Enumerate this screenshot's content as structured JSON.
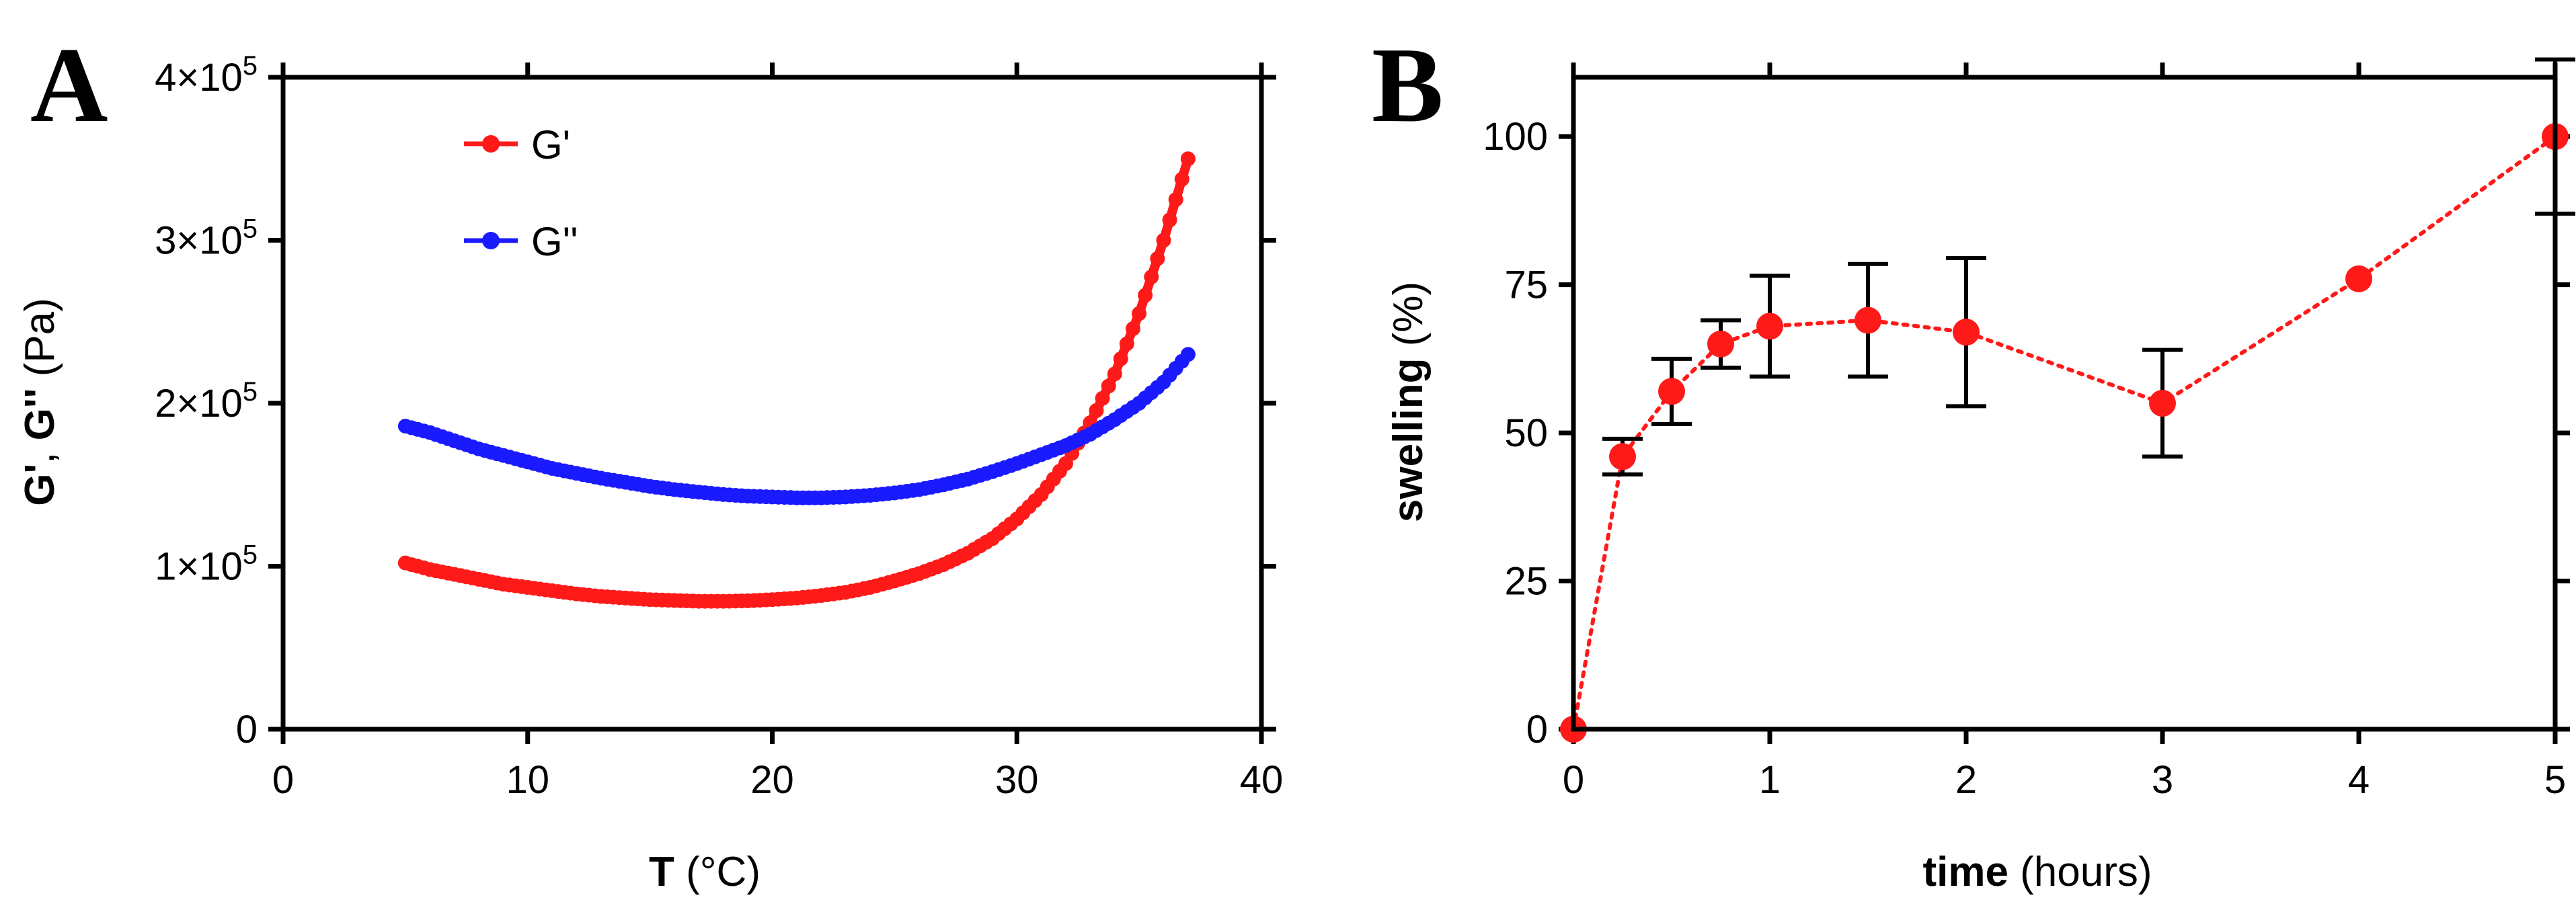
{
  "panels": {
    "A": {
      "label": "A",
      "ylabel_g1": "G'",
      "ylabel_comma": ", ",
      "ylabel_g2": "G''",
      "ylabel_unit": " (Pa)",
      "xlabel_bold": "T",
      "xlabel_unit": " (°C)",
      "y_exp": "5",
      "legend": [
        "G'",
        "G''"
      ]
    },
    "B": {
      "label": "B",
      "ylabel_bold": "swelling",
      "ylabel_unit": " (%)",
      "xlabel_bold": "time",
      "xlabel_unit": " (hours)"
    }
  },
  "chart_data": [
    {
      "type": "scatter",
      "title": "",
      "xlabel": "T (°C)",
      "ylabel": "G', G'' (Pa)",
      "xlim": [
        0,
        40
      ],
      "ylim": [
        0,
        400000
      ],
      "xticks": [
        0,
        10,
        20,
        30,
        40
      ],
      "xtick_labels": [
        "0",
        "10",
        "20",
        "30",
        "40"
      ],
      "yticks": [
        0,
        100000,
        200000,
        300000,
        400000
      ],
      "ytick_labels": [
        "0",
        "1×10",
        "2×10",
        "3×10",
        "4×10"
      ],
      "legend_position": "top-center",
      "series": [
        {
          "name": "G'",
          "color": "#ff1a1a",
          "x": [
            5,
            6,
            7,
            8,
            9,
            10,
            11,
            12,
            13,
            14,
            15,
            16,
            17,
            18,
            19,
            20,
            21,
            22,
            23,
            24,
            25,
            26,
            27,
            28,
            29,
            30,
            31,
            32,
            33,
            34,
            35,
            36,
            37
          ],
          "y": [
            102000,
            98000,
            95000,
            92000,
            89000,
            87000,
            85000,
            83000,
            81500,
            80500,
            79500,
            79000,
            78500,
            78500,
            78800,
            79500,
            80500,
            82000,
            84000,
            87000,
            91000,
            95500,
            101000,
            108000,
            117000,
            129000,
            144000,
            163000,
            188000,
            218000,
            255000,
            300000,
            350000
          ]
        },
        {
          "name": "G''",
          "color": "#1a1aff",
          "x": [
            5,
            6,
            7,
            8,
            9,
            10,
            11,
            12,
            13,
            14,
            15,
            16,
            17,
            18,
            19,
            20,
            21,
            22,
            23,
            24,
            25,
            26,
            27,
            28,
            29,
            30,
            31,
            32,
            33,
            34,
            35,
            36,
            37
          ],
          "y": [
            186000,
            182000,
            177000,
            172000,
            168000,
            164000,
            160000,
            157000,
            154000,
            151500,
            149000,
            147000,
            145500,
            144000,
            143000,
            142500,
            142000,
            142000,
            142500,
            143500,
            145000,
            147000,
            150000,
            153500,
            158000,
            163000,
            168500,
            174000,
            181000,
            190000,
            200000,
            213000,
            230000
          ]
        }
      ]
    },
    {
      "type": "line",
      "title": "",
      "xlabel": "time (hours)",
      "ylabel": "swelling (%)",
      "xlim": [
        0,
        5
      ],
      "ylim": [
        0,
        110
      ],
      "xticks": [
        0,
        1,
        2,
        3,
        4,
        5
      ],
      "xtick_labels": [
        "0",
        "1",
        "2",
        "3",
        "4",
        "5"
      ],
      "yticks": [
        0,
        25,
        50,
        75,
        100
      ],
      "ytick_labels": [
        "0",
        "25",
        "50",
        "75",
        "100"
      ],
      "series": [
        {
          "name": "swelling",
          "color": "#ff1a1a",
          "line_style": "dotted",
          "x": [
            0,
            0.25,
            0.5,
            0.75,
            1,
            1.5,
            2,
            3,
            4,
            5
          ],
          "y": [
            0,
            46,
            57,
            65,
            68,
            69,
            67,
            55,
            76,
            100
          ],
          "error": [
            0,
            3,
            5.5,
            4,
            8.5,
            9.5,
            12.5,
            9,
            0,
            13
          ]
        }
      ]
    }
  ]
}
